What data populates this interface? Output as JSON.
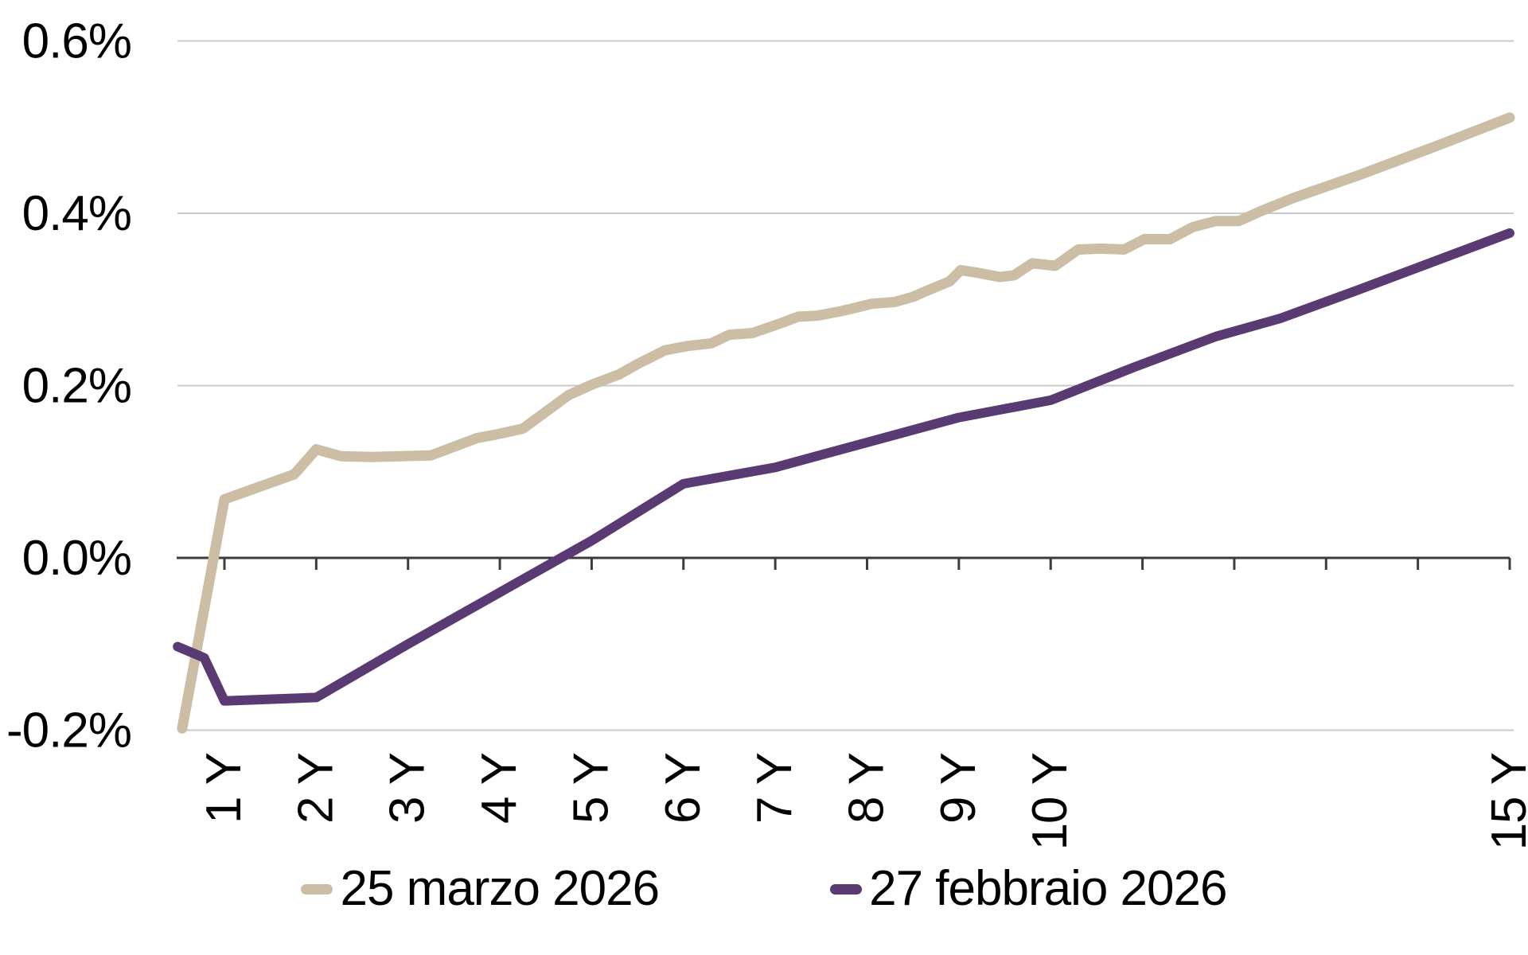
{
  "chart_data": {
    "type": "line",
    "title": "",
    "unit": "%",
    "colors": {
      "axis": "#3C3C3C",
      "gridline": "#C9C9C9",
      "text": "#000000",
      "background": "#FFFFFF"
    },
    "y_axis": {
      "label": "",
      "unit": "%",
      "domain": [
        -0.26,
        0.62
      ],
      "ticks": [
        {
          "value": 0.6,
          "label": "0.6%"
        },
        {
          "value": 0.4,
          "label": "0.4%"
        },
        {
          "value": 0.2,
          "label": "0.2%"
        },
        {
          "value": 0.0,
          "label": "0.0%"
        },
        {
          "value": -0.2,
          "label": "-0.2%"
        }
      ]
    },
    "x_axis": {
      "label": "",
      "unit": "years",
      "domain": [
        0.45,
        15.05
      ],
      "ticks": [
        {
          "year": 1,
          "label": "1 Y"
        },
        {
          "year": 2,
          "label": "2 Y"
        },
        {
          "year": 3,
          "label": "3 Y"
        },
        {
          "year": 4,
          "label": "4 Y"
        },
        {
          "year": 5,
          "label": "5 Y"
        },
        {
          "year": 6,
          "label": "6 Y"
        },
        {
          "year": 7,
          "label": "7 Y"
        },
        {
          "year": 8,
          "label": "8 Y"
        },
        {
          "year": 9,
          "label": "9 Y"
        },
        {
          "year": 10,
          "label": "10 Y"
        },
        {
          "year": 11,
          "label": ""
        },
        {
          "year": 12,
          "label": ""
        },
        {
          "year": 13,
          "label": ""
        },
        {
          "year": 14,
          "label": ""
        },
        {
          "year": 15,
          "label": "15 Y"
        }
      ]
    },
    "legend": {
      "position": "bottom"
    },
    "series": [
      {
        "name": "25 marzo 2026",
        "color": "#CBBEA5",
        "width": 13,
        "points": [
          [
            0.54,
            -0.198
          ],
          [
            1.0,
            0.068
          ],
          [
            1.76,
            0.097
          ],
          [
            2.0,
            0.126
          ],
          [
            2.27,
            0.118
          ],
          [
            2.6,
            0.117
          ],
          [
            3.25,
            0.119
          ],
          [
            3.55,
            0.131
          ],
          [
            3.75,
            0.139
          ],
          [
            3.95,
            0.143
          ],
          [
            4.25,
            0.15
          ],
          [
            4.75,
            0.189
          ],
          [
            5.0,
            0.201
          ],
          [
            5.3,
            0.213
          ],
          [
            5.5,
            0.225
          ],
          [
            5.8,
            0.241
          ],
          [
            6.05,
            0.246
          ],
          [
            6.3,
            0.249
          ],
          [
            6.5,
            0.259
          ],
          [
            6.75,
            0.261
          ],
          [
            7.05,
            0.272
          ],
          [
            7.25,
            0.28
          ],
          [
            7.45,
            0.281
          ],
          [
            7.7,
            0.286
          ],
          [
            7.9,
            0.291
          ],
          [
            8.05,
            0.295
          ],
          [
            8.3,
            0.297
          ],
          [
            8.5,
            0.303
          ],
          [
            8.65,
            0.31
          ],
          [
            8.9,
            0.321
          ],
          [
            9.02,
            0.334
          ],
          [
            9.2,
            0.331
          ],
          [
            9.45,
            0.326
          ],
          [
            9.6,
            0.328
          ],
          [
            9.8,
            0.342
          ],
          [
            10.05,
            0.339
          ],
          [
            10.3,
            0.358
          ],
          [
            10.55,
            0.359
          ],
          [
            10.8,
            0.358
          ],
          [
            11.02,
            0.37
          ],
          [
            11.3,
            0.37
          ],
          [
            11.55,
            0.384
          ],
          [
            11.8,
            0.391
          ],
          [
            12.05,
            0.391
          ],
          [
            12.3,
            0.403
          ],
          [
            12.65,
            0.418
          ],
          [
            13.35,
            0.444
          ],
          [
            14.2,
            0.478
          ],
          [
            15.0,
            0.511
          ]
        ]
      },
      {
        "name": "27 febbraio 2026",
        "color": "#5A3A73",
        "width": 12,
        "points": [
          [
            0.49,
            -0.103
          ],
          [
            0.78,
            -0.116
          ],
          [
            1.0,
            -0.166
          ],
          [
            2.0,
            -0.162
          ],
          [
            3.0,
            -0.1
          ],
          [
            4.0,
            -0.04
          ],
          [
            5.0,
            0.02
          ],
          [
            6.0,
            0.086
          ],
          [
            7.0,
            0.105
          ],
          [
            8.0,
            0.134
          ],
          [
            9.0,
            0.163
          ],
          [
            10.0,
            0.183
          ],
          [
            10.9,
            0.221
          ],
          [
            11.8,
            0.257
          ],
          [
            12.5,
            0.278
          ],
          [
            13.35,
            0.311
          ],
          [
            14.2,
            0.345
          ],
          [
            15.0,
            0.377
          ]
        ]
      }
    ]
  }
}
